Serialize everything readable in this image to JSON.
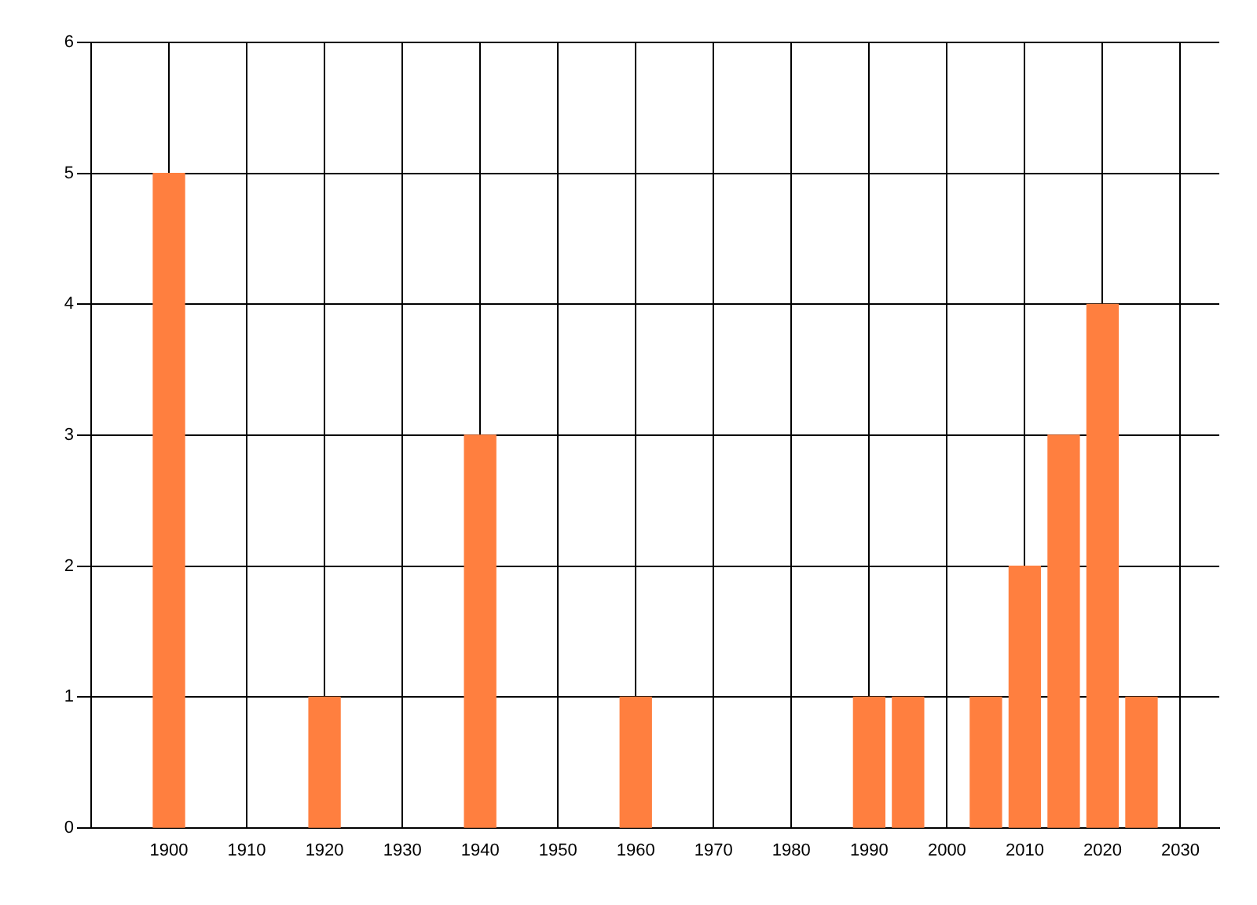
{
  "chart_data": {
    "type": "bar",
    "x": [
      1900,
      1920,
      1940,
      1960,
      1990,
      1995,
      2005,
      2010,
      2015,
      2020,
      2025
    ],
    "values": [
      5,
      1,
      3,
      1,
      1,
      1,
      1,
      2,
      3,
      4,
      1
    ],
    "color": "#ff7f3f",
    "xlim": [
      1890,
      2035
    ],
    "xticks": [
      1900,
      1910,
      1920,
      1930,
      1940,
      1950,
      1960,
      1970,
      1980,
      1990,
      2000,
      2010,
      2020,
      2030
    ],
    "ylim": [
      0,
      6
    ],
    "yticks": [
      0,
      1,
      2,
      3,
      4,
      5,
      6
    ],
    "grid": true
  }
}
